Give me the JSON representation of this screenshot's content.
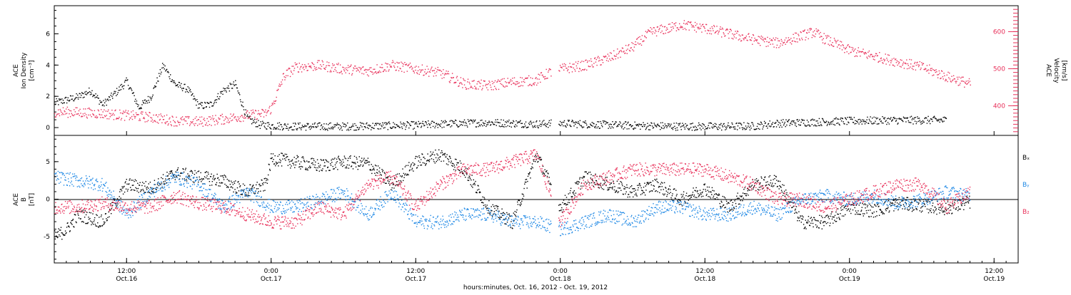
{
  "colors": {
    "density": "#000000",
    "velocity": "#e8305a",
    "bx": "#000000",
    "by": "#1e88e5",
    "bz": "#e8305a",
    "axis": "#000000"
  },
  "x_axis": {
    "title": "hours:minutes, Oct. 16, 2012 - Oct. 19, 2012",
    "range_hours": [
      0,
      80
    ],
    "ticks": [
      {
        "hours": 6,
        "time": "12:00",
        "date": "Oct.16"
      },
      {
        "hours": 18,
        "time": "0:00",
        "date": "Oct.17"
      },
      {
        "hours": 30,
        "time": "12:00",
        "date": "Oct.17"
      },
      {
        "hours": 42,
        "time": "0:00",
        "date": "Oct.18"
      },
      {
        "hours": 54,
        "time": "12:00",
        "date": "Oct.18"
      },
      {
        "hours": 66,
        "time": "0:00",
        "date": "Oct.19"
      },
      {
        "hours": 78,
        "time": "12:00",
        "date": "Oct.19"
      }
    ]
  },
  "panels": {
    "top": {
      "left_label": [
        "ACE",
        "Ion Density",
        "[cm⁻³]"
      ],
      "right_label": [
        "ACE",
        "Velocity",
        "[km/s]"
      ],
      "left_ticks": [
        "0",
        "2",
        "4",
        "6"
      ],
      "right_ticks": [
        "400",
        "500",
        "600"
      ]
    },
    "bottom": {
      "left_label": [
        "ACE",
        "B",
        "[nT]"
      ],
      "left_ticks": [
        "-5",
        "0",
        "5"
      ],
      "legend": [
        {
          "key": "bx",
          "text": "Bₓ"
        },
        {
          "key": "by",
          "text": "Bᵧ"
        },
        {
          "key": "bz",
          "text": "B₂"
        }
      ]
    }
  },
  "chart_data": [
    {
      "type": "scatter",
      "xlabel": "hours:minutes, Oct. 16, 2012 - Oct. 19, 2012",
      "ylabel": "ACE Ion Density [cm-3]",
      "ylim": [
        -0.5,
        7.8
      ],
      "y2label": "ACE Velocity [km/s]",
      "y2lim": [
        320,
        670
      ],
      "x_units": "hours since Oct.16 06:00",
      "series": [
        {
          "name": "Ion Density",
          "axis": "left",
          "x": [
            0,
            1,
            2,
            3,
            4,
            5,
            6,
            7,
            8,
            9,
            10,
            11,
            12,
            13,
            14,
            15,
            16,
            17,
            18,
            19,
            20,
            24,
            28,
            30,
            32,
            34,
            36,
            38,
            40,
            42,
            44,
            48,
            52,
            56,
            58,
            60,
            62,
            64,
            66,
            70,
            74
          ],
          "values": [
            1.6,
            1.8,
            2.0,
            2.4,
            1.5,
            2.2,
            3.0,
            1.3,
            2.0,
            4.0,
            2.8,
            2.5,
            1.4,
            1.5,
            2.4,
            2.8,
            0.6,
            0.2,
            0.15,
            0.12,
            0.1,
            0.1,
            0.15,
            0.18,
            0.25,
            0.3,
            0.35,
            0.3,
            0.25,
            0.3,
            0.25,
            0.15,
            0.1,
            0.1,
            0.12,
            0.3,
            0.35,
            0.4,
            0.45,
            0.5,
            0.5
          ]
        },
        {
          "name": "Velocity",
          "axis": "right",
          "x": [
            0,
            2,
            4,
            6,
            8,
            10,
            12,
            14,
            16,
            17.5,
            18,
            19,
            20,
            22,
            24,
            26,
            28,
            30,
            32,
            34,
            36,
            38,
            40,
            41,
            42,
            44,
            46,
            48,
            49.5,
            51,
            52,
            54,
            56,
            58,
            60,
            62,
            63,
            64,
            66,
            68,
            70,
            72,
            74,
            76
          ],
          "values": [
            385,
            383,
            380,
            375,
            370,
            360,
            358,
            365,
            375,
            380,
            395,
            480,
            505,
            510,
            500,
            495,
            510,
            500,
            490,
            460,
            455,
            465,
            470,
            490,
            500,
            510,
            530,
            560,
            600,
            610,
            620,
            610,
            595,
            580,
            570,
            590,
            600,
            580,
            550,
            535,
            520,
            505,
            480,
            460
          ]
        }
      ]
    },
    {
      "type": "scatter",
      "xlabel": "hours:minutes, Oct. 16, 2012 - Oct. 19, 2012",
      "ylabel": "ACE B [nT]",
      "ylim": [
        -8.5,
        8.5
      ],
      "x_units": "hours since Oct.16 06:00",
      "series": [
        {
          "name": "Bx",
          "x": [
            0,
            1,
            2,
            4,
            6,
            8,
            10,
            12,
            14,
            16,
            17.5,
            18,
            20,
            22,
            24,
            26,
            28,
            30,
            32,
            34,
            36,
            38,
            40,
            42,
            44,
            46,
            48,
            50,
            52,
            54,
            56,
            58,
            60,
            62,
            64,
            66,
            68,
            70,
            72,
            74,
            76
          ],
          "values": [
            -5,
            -4,
            -2,
            -3,
            2,
            1.5,
            3.5,
            3,
            2.5,
            1,
            2,
            5.5,
            5,
            4.5,
            5,
            4.8,
            2,
            5,
            6,
            4,
            -1,
            -3,
            6,
            -1,
            3,
            2,
            1,
            2,
            0,
            1.5,
            -1,
            2,
            2.5,
            -3,
            -3,
            -1,
            -1.5,
            -0.5,
            -0.8,
            -1.2,
            -0.3
          ]
        },
        {
          "name": "By",
          "x": [
            0,
            2,
            4,
            6,
            8,
            10,
            12,
            14,
            16,
            18,
            20,
            22,
            24,
            26,
            28,
            30,
            32,
            34,
            36,
            38,
            40,
            42,
            44,
            46,
            48,
            50,
            52,
            54,
            56,
            58,
            60,
            62,
            64,
            66,
            68,
            70,
            72,
            74,
            76
          ],
          "values": [
            3,
            2.5,
            2,
            -2,
            1,
            3,
            2,
            -1,
            1,
            -1,
            -1,
            0,
            1,
            -2,
            1,
            -3,
            -3,
            -2,
            -2,
            -3,
            -3,
            -4,
            -3,
            -2,
            -3,
            -1,
            -1,
            -2,
            -2,
            -1,
            -2,
            0,
            0.5,
            0,
            0.5,
            -0.5,
            0,
            1,
            0.5
          ]
        },
        {
          "name": "Bz",
          "x": [
            0,
            2,
            4,
            6,
            8,
            10,
            12,
            14,
            16,
            18,
            20,
            22,
            24,
            26,
            28,
            30,
            32,
            34,
            36,
            38,
            40,
            42,
            44,
            46,
            48,
            50,
            52,
            54,
            56,
            58,
            60,
            62,
            64,
            66,
            68,
            70,
            72,
            74,
            76
          ],
          "values": [
            -1,
            -1,
            -0.5,
            -1,
            -1,
            0.5,
            -0.5,
            -1,
            -2,
            -3,
            -3,
            -1,
            -2,
            2,
            3,
            -1,
            2,
            4,
            4,
            5,
            6,
            -3,
            2,
            3,
            4,
            4,
            4,
            4,
            3,
            2,
            0,
            0,
            -1,
            0,
            1,
            2,
            2,
            -1,
            1
          ]
        }
      ]
    }
  ]
}
